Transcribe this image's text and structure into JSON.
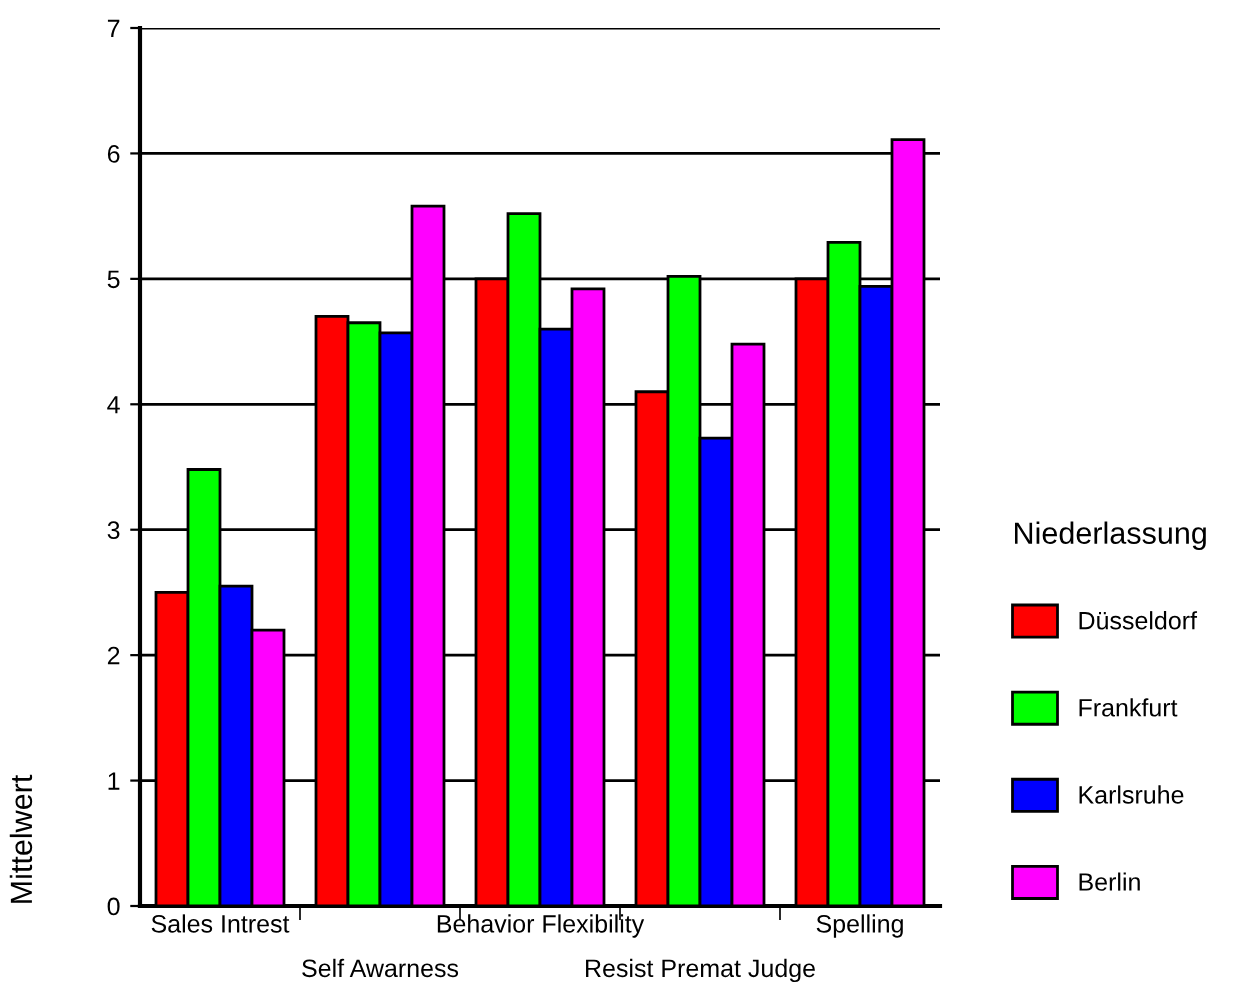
{
  "chart_data": {
    "type": "bar",
    "xlabel": null,
    "ylabel": "Mittelwert",
    "legend_title": "Niederlassung",
    "legend": "right",
    "categories": [
      "Sales Intrest",
      "Self Awarness",
      "Behavior Flexibility",
      "Resist Premat Judge",
      "Spelling"
    ],
    "series": [
      {
        "name": "Düsseldorf",
        "color": "#ff0000",
        "values": [
          2.5,
          4.7,
          5.0,
          4.1,
          5.0
        ]
      },
      {
        "name": "Frankfurt",
        "color": "#00ff00",
        "values": [
          3.48,
          4.65,
          5.52,
          5.02,
          5.29
        ]
      },
      {
        "name": "Karlsruhe",
        "color": "#0000ff",
        "values": [
          2.55,
          4.57,
          4.6,
          3.73,
          4.94
        ]
      },
      {
        "name": "Berlin",
        "color": "#ff00ff",
        "values": [
          2.2,
          5.58,
          4.92,
          4.48,
          6.11
        ]
      }
    ],
    "ylim": [
      0,
      7
    ],
    "yticks": [
      0,
      1,
      2,
      3,
      4,
      5,
      6,
      7
    ],
    "grid": "y"
  }
}
